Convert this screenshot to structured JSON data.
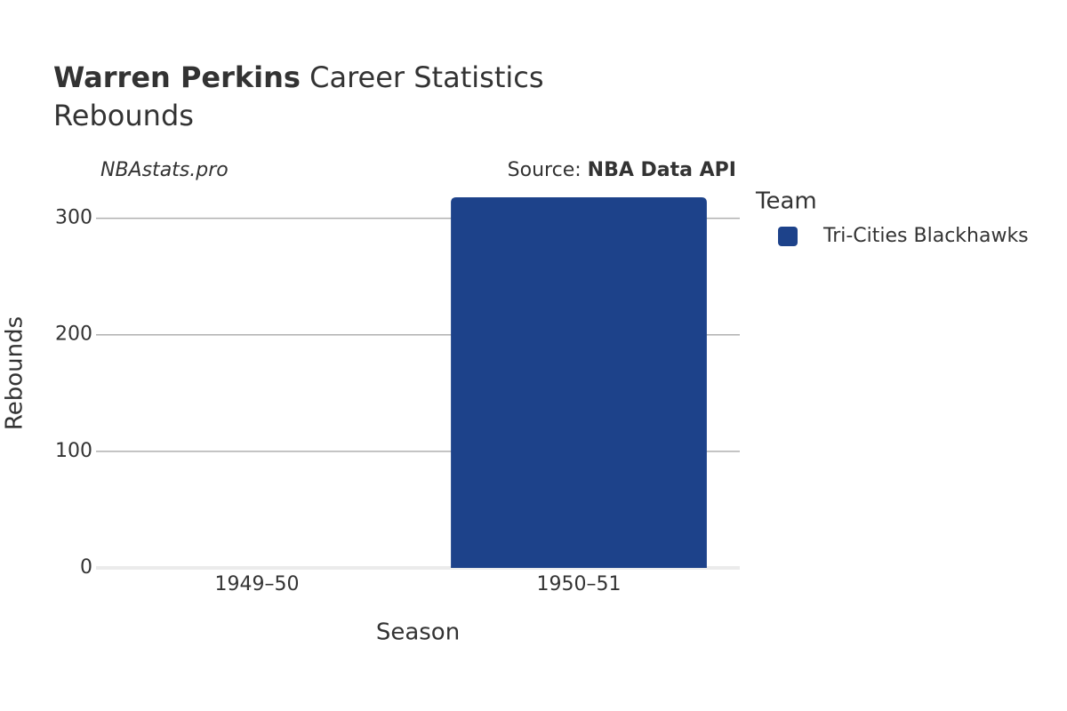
{
  "chart_data": {
    "type": "bar",
    "title_name": "Warren Perkins",
    "title_rest": "Career Statistics",
    "subtitle": "Rebounds",
    "watermark": "NBAstats.pro",
    "source_label": "Source:",
    "source": "NBA Data API",
    "x_label": "Season",
    "y_label": "Rebounds",
    "categories": [
      "1949–50",
      "1950–51"
    ],
    "series": [
      {
        "name": "Tri-Cities Blackhawks",
        "color": "#1d428a",
        "values": [
          null,
          318
        ]
      }
    ],
    "legend_title": "Team",
    "ylim": [
      0,
      334
    ],
    "yticks": [
      0,
      100,
      200,
      300
    ],
    "grid": true
  }
}
